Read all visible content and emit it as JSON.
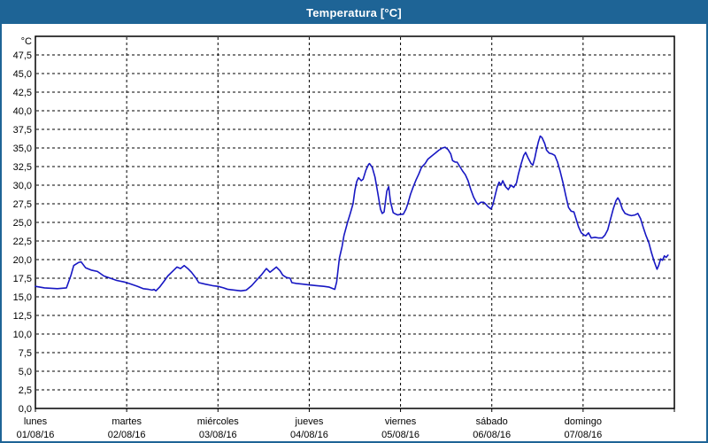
{
  "window": {
    "title": "Temperatura [°C]"
  },
  "colors": {
    "titlebar_bg": "#1e6496",
    "title_text": "#ffffff",
    "window_border": "#1e6496",
    "plot_bg": "#ffffff",
    "plot_border": "#000000",
    "grid": "#000000",
    "axis_text": "#000000",
    "line": "#1717c3"
  },
  "chart_data": {
    "type": "line",
    "title": "Temperatura [°C]",
    "ylabel": "°C",
    "xlabel": "",
    "ylim": [
      0,
      50
    ],
    "y_tick_step": 2.5,
    "y_tick_labels": [
      "0,0",
      "2,5",
      "5,0",
      "7,5",
      "10,0",
      "12,5",
      "15,0",
      "17,5",
      "20,0",
      "22,5",
      "25,0",
      "27,5",
      "30,0",
      "32,5",
      "35,0",
      "37,5",
      "40,0",
      "42,5",
      "45,0",
      "47,5"
    ],
    "y_unit_label": "°C",
    "grid": "dashed",
    "legend_position": "none",
    "x_days": [
      {
        "name": "lunes",
        "date": "01/08/16"
      },
      {
        "name": "martes",
        "date": "02/08/16"
      },
      {
        "name": "miércoles",
        "date": "03/08/16"
      },
      {
        "name": "jueves",
        "date": "04/08/16"
      },
      {
        "name": "viernes",
        "date": "05/08/16"
      },
      {
        "name": "sábado",
        "date": "06/08/16"
      },
      {
        "name": "domingo",
        "date": "07/08/16"
      }
    ],
    "xlim_days": [
      0,
      7
    ],
    "series": [
      {
        "name": "Temperatura",
        "color": "#1717c3",
        "points": [
          [
            0.0,
            16.4
          ],
          [
            0.1,
            16.2
          ],
          [
            0.24,
            16.1
          ],
          [
            0.34,
            16.2
          ],
          [
            0.39,
            17.9
          ],
          [
            0.42,
            19.2
          ],
          [
            0.47,
            19.6
          ],
          [
            0.5,
            19.7
          ],
          [
            0.55,
            18.9
          ],
          [
            0.61,
            18.6
          ],
          [
            0.68,
            18.4
          ],
          [
            0.75,
            17.8
          ],
          [
            0.82,
            17.5
          ],
          [
            0.89,
            17.2
          ],
          [
            0.97,
            17.0
          ],
          [
            1.0,
            16.9
          ],
          [
            1.05,
            16.7
          ],
          [
            1.12,
            16.4
          ],
          [
            1.18,
            16.1
          ],
          [
            1.24,
            16.0
          ],
          [
            1.28,
            15.9
          ],
          [
            1.3,
            16.0
          ],
          [
            1.32,
            15.8
          ],
          [
            1.36,
            16.3
          ],
          [
            1.41,
            17.1
          ],
          [
            1.45,
            17.8
          ],
          [
            1.51,
            18.5
          ],
          [
            1.55,
            19.0
          ],
          [
            1.59,
            18.8
          ],
          [
            1.63,
            19.2
          ],
          [
            1.67,
            18.8
          ],
          [
            1.71,
            18.3
          ],
          [
            1.76,
            17.5
          ],
          [
            1.79,
            16.9
          ],
          [
            1.86,
            16.7
          ],
          [
            1.94,
            16.5
          ],
          [
            2.0,
            16.4
          ],
          [
            2.06,
            16.2
          ],
          [
            2.11,
            16.0
          ],
          [
            2.18,
            15.9
          ],
          [
            2.25,
            15.8
          ],
          [
            2.31,
            15.9
          ],
          [
            2.37,
            16.5
          ],
          [
            2.42,
            17.2
          ],
          [
            2.48,
            18.0
          ],
          [
            2.53,
            18.8
          ],
          [
            2.57,
            18.3
          ],
          [
            2.6,
            18.6
          ],
          [
            2.64,
            19.0
          ],
          [
            2.68,
            18.5
          ],
          [
            2.71,
            17.9
          ],
          [
            2.75,
            17.6
          ],
          [
            2.79,
            17.5
          ],
          [
            2.81,
            16.9
          ],
          [
            2.86,
            16.8
          ],
          [
            2.93,
            16.7
          ],
          [
            3.0,
            16.6
          ],
          [
            3.08,
            16.5
          ],
          [
            3.16,
            16.4
          ],
          [
            3.22,
            16.3
          ],
          [
            3.26,
            16.1
          ],
          [
            3.28,
            16.0
          ],
          [
            3.3,
            17.0
          ],
          [
            3.33,
            20.2
          ],
          [
            3.36,
            21.8
          ],
          [
            3.38,
            23.2
          ],
          [
            3.42,
            25.0
          ],
          [
            3.45,
            26.2
          ],
          [
            3.48,
            27.5
          ],
          [
            3.5,
            29.3
          ],
          [
            3.52,
            30.5
          ],
          [
            3.54,
            31.0
          ],
          [
            3.57,
            30.6
          ],
          [
            3.59,
            30.8
          ],
          [
            3.62,
            32.0
          ],
          [
            3.65,
            32.8
          ],
          [
            3.66,
            32.9
          ],
          [
            3.69,
            32.4
          ],
          [
            3.72,
            31.1
          ],
          [
            3.75,
            29.0
          ],
          [
            3.78,
            26.8
          ],
          [
            3.8,
            26.2
          ],
          [
            3.82,
            26.4
          ],
          [
            3.85,
            29.2
          ],
          [
            3.87,
            29.8
          ],
          [
            3.89,
            27.8
          ],
          [
            3.92,
            26.3
          ],
          [
            3.95,
            26.1
          ],
          [
            3.97,
            26.0
          ],
          [
            4.0,
            26.1
          ],
          [
            4.03,
            26.1
          ],
          [
            4.06,
            26.8
          ],
          [
            4.08,
            27.5
          ],
          [
            4.11,
            28.8
          ],
          [
            4.14,
            29.8
          ],
          [
            4.17,
            30.7
          ],
          [
            4.2,
            31.5
          ],
          [
            4.23,
            32.4
          ],
          [
            4.27,
            32.9
          ],
          [
            4.3,
            33.5
          ],
          [
            4.34,
            33.9
          ],
          [
            4.38,
            34.3
          ],
          [
            4.42,
            34.7
          ],
          [
            4.46,
            35.0
          ],
          [
            4.49,
            35.1
          ],
          [
            4.52,
            34.8
          ],
          [
            4.55,
            34.2
          ],
          [
            4.57,
            33.3
          ],
          [
            4.6,
            33.1
          ],
          [
            4.62,
            33.1
          ],
          [
            4.65,
            32.5
          ],
          [
            4.68,
            31.9
          ],
          [
            4.71,
            31.4
          ],
          [
            4.74,
            30.6
          ],
          [
            4.77,
            29.4
          ],
          [
            4.8,
            28.4
          ],
          [
            4.83,
            27.7
          ],
          [
            4.85,
            27.4
          ],
          [
            4.88,
            27.7
          ],
          [
            4.91,
            27.7
          ],
          [
            4.93,
            27.5
          ],
          [
            4.96,
            27.1
          ],
          [
            4.99,
            26.8
          ],
          [
            5.01,
            27.3
          ],
          [
            5.03,
            28.3
          ],
          [
            5.06,
            29.8
          ],
          [
            5.08,
            30.4
          ],
          [
            5.1,
            30.0
          ],
          [
            5.12,
            30.6
          ],
          [
            5.15,
            29.8
          ],
          [
            5.18,
            29.4
          ],
          [
            5.21,
            30.0
          ],
          [
            5.24,
            29.7
          ],
          [
            5.27,
            30.3
          ],
          [
            5.29,
            31.4
          ],
          [
            5.32,
            32.8
          ],
          [
            5.35,
            34.0
          ],
          [
            5.37,
            34.4
          ],
          [
            5.4,
            33.6
          ],
          [
            5.43,
            32.9
          ],
          [
            5.45,
            32.7
          ],
          [
            5.47,
            33.6
          ],
          [
            5.49,
            34.8
          ],
          [
            5.51,
            35.8
          ],
          [
            5.53,
            36.6
          ],
          [
            5.55,
            36.4
          ],
          [
            5.58,
            35.6
          ],
          [
            5.6,
            34.7
          ],
          [
            5.63,
            34.3
          ],
          [
            5.66,
            34.2
          ],
          [
            5.69,
            34.0
          ],
          [
            5.72,
            33.1
          ],
          [
            5.75,
            31.8
          ],
          [
            5.78,
            30.3
          ],
          [
            5.81,
            28.6
          ],
          [
            5.84,
            27.0
          ],
          [
            5.87,
            26.5
          ],
          [
            5.9,
            26.4
          ],
          [
            5.92,
            25.6
          ],
          [
            5.95,
            24.4
          ],
          [
            5.98,
            23.6
          ],
          [
            6.01,
            23.3
          ],
          [
            6.03,
            23.2
          ],
          [
            6.06,
            23.6
          ],
          [
            6.09,
            22.9
          ],
          [
            6.13,
            23.0
          ],
          [
            6.17,
            22.9
          ],
          [
            6.21,
            22.9
          ],
          [
            6.24,
            23.3
          ],
          [
            6.27,
            24.0
          ],
          [
            6.3,
            25.4
          ],
          [
            6.33,
            26.8
          ],
          [
            6.36,
            27.9
          ],
          [
            6.38,
            28.3
          ],
          [
            6.4,
            27.9
          ],
          [
            6.43,
            26.8
          ],
          [
            6.46,
            26.2
          ],
          [
            6.5,
            26.0
          ],
          [
            6.53,
            25.9
          ],
          [
            6.57,
            26.0
          ],
          [
            6.6,
            26.2
          ],
          [
            6.63,
            25.5
          ],
          [
            6.66,
            24.3
          ],
          [
            6.69,
            23.2
          ],
          [
            6.72,
            22.3
          ],
          [
            6.75,
            20.9
          ],
          [
            6.78,
            19.7
          ],
          [
            6.81,
            18.7
          ],
          [
            6.83,
            19.3
          ],
          [
            6.85,
            20.1
          ],
          [
            6.87,
            19.9
          ],
          [
            6.89,
            20.5
          ],
          [
            6.91,
            20.3
          ],
          [
            6.93,
            20.6
          ]
        ]
      }
    ]
  }
}
